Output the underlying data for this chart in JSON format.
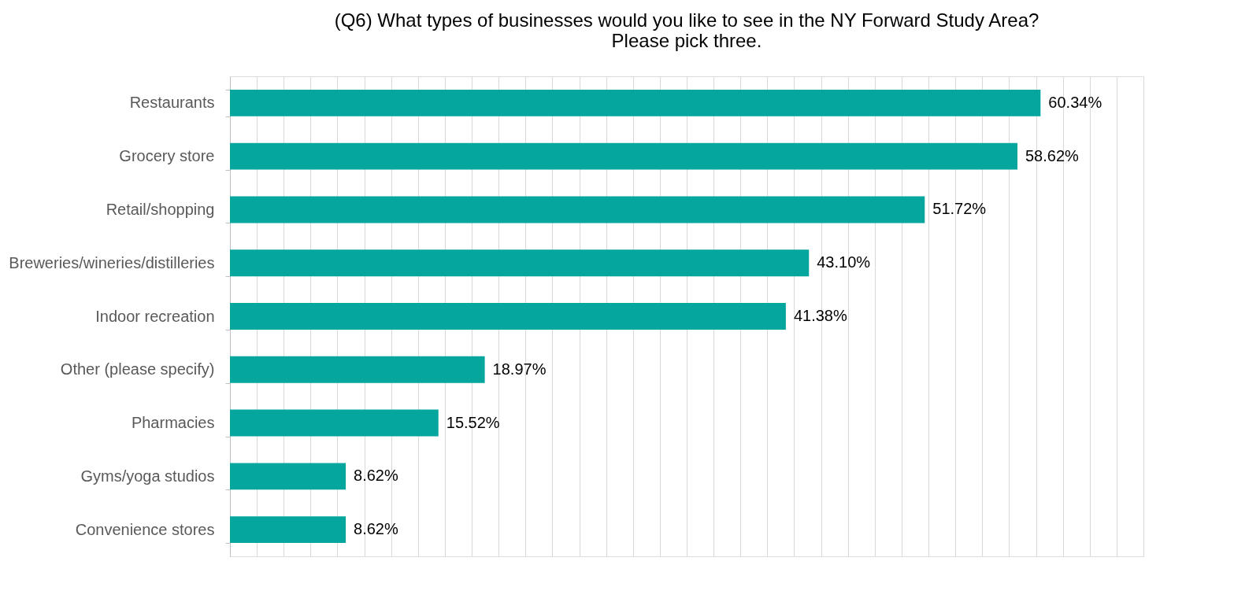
{
  "chart_data": {
    "type": "bar",
    "orientation": "horizontal",
    "title": [
      "(Q6) What types of businesses would you like to see in the NY Forward Study Area?",
      "Please pick three."
    ],
    "categories": [
      "Restaurants",
      "Grocery store",
      "Retail/shopping",
      "Breweries/wineries/distilleries",
      "Indoor recreation",
      "Other (please specify)",
      "Pharmacies",
      "Gyms/yoga studios",
      "Convenience stores"
    ],
    "values": [
      60.34,
      58.62,
      51.72,
      43.1,
      41.38,
      18.97,
      15.52,
      8.62,
      8.62
    ],
    "value_labels": [
      "60.34%",
      "58.62%",
      "51.72%",
      "43.10%",
      "41.38%",
      "18.97%",
      "15.52%",
      "8.62%",
      "8.62%"
    ],
    "color": "#04a69d",
    "xlim": [
      0,
      68
    ],
    "tick_labels": "y",
    "grid": "x"
  }
}
